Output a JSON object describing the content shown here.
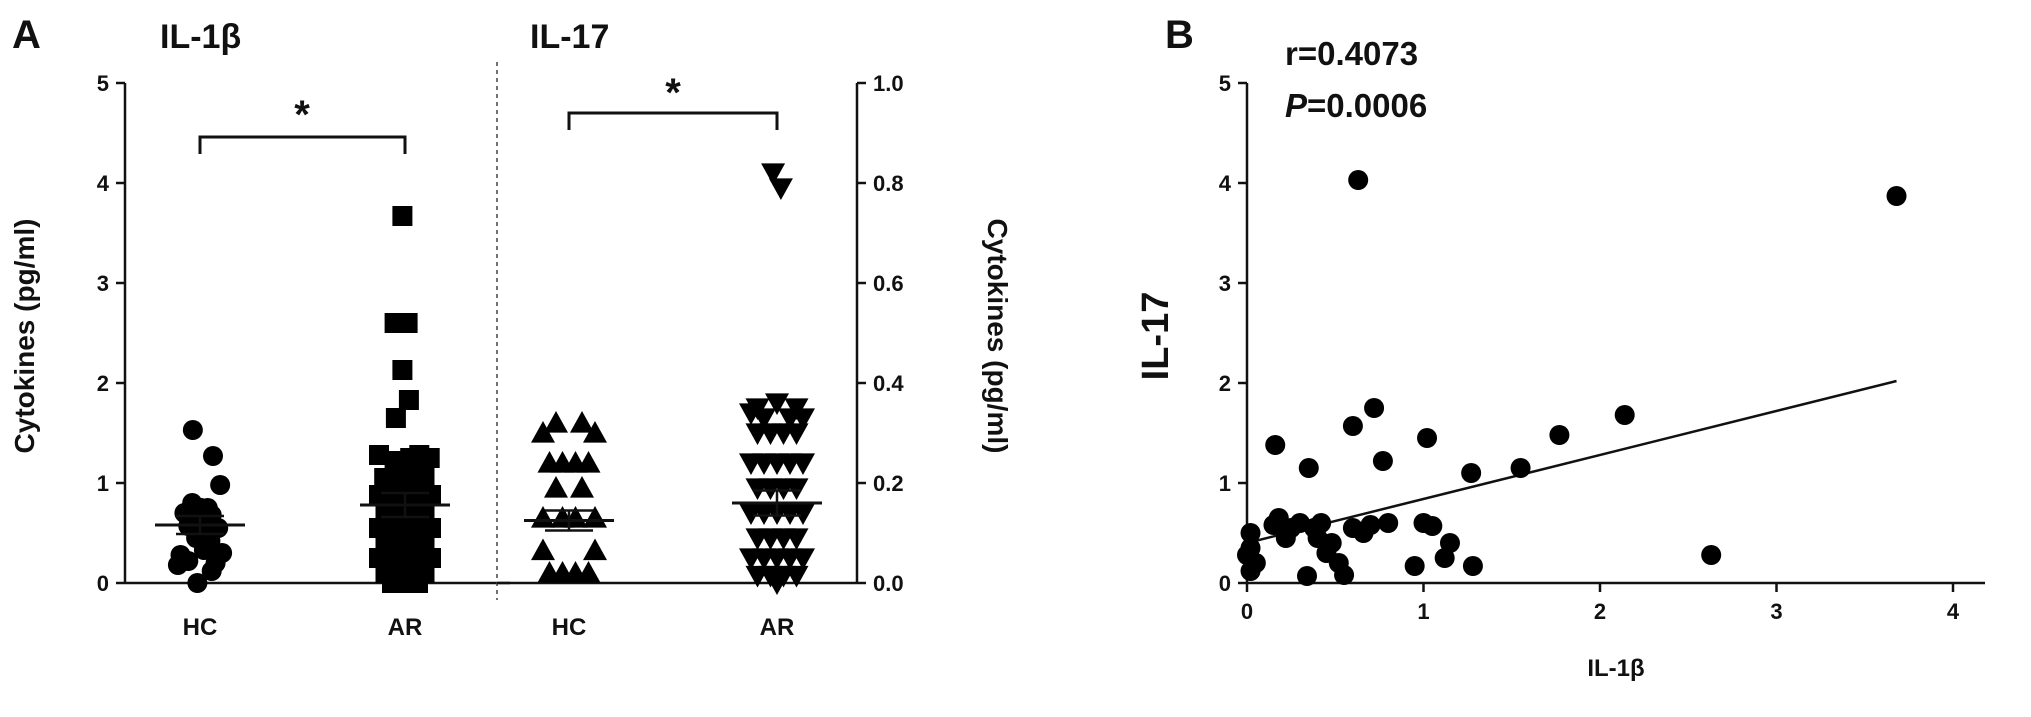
{
  "panels": {
    "A_label": "A",
    "B_label": "B"
  },
  "chart_data": [
    {
      "type": "scatter",
      "subtype": "dot-plot with mean and SEM",
      "title": "IL-1β",
      "ylabel": "Cytokines (pg/ml)",
      "ylim": [
        0,
        5
      ],
      "yticks": [
        "0",
        "1",
        "2",
        "3",
        "4",
        "5"
      ],
      "categories": [
        "HC",
        "AR"
      ],
      "significance": "*",
      "series": [
        {
          "category": "HC",
          "marker": "circle",
          "mean": 0.58,
          "sem": 0.09,
          "points": [
            {
              "x": -0.55,
              "y": 1.53
            },
            {
              "x": 1.0,
              "y": 1.27
            },
            {
              "x": 1.55,
              "y": 0.98
            },
            {
              "x": -0.6,
              "y": 0.8
            },
            {
              "x": 0.1,
              "y": 0.75
            },
            {
              "x": 0.6,
              "y": 0.75
            },
            {
              "x": -1.2,
              "y": 0.7
            },
            {
              "x": -0.2,
              "y": 0.68
            },
            {
              "x": 0.9,
              "y": 0.68
            },
            {
              "x": -0.9,
              "y": 0.57
            },
            {
              "x": 0.3,
              "y": 0.56
            },
            {
              "x": 1.4,
              "y": 0.55
            },
            {
              "x": -0.3,
              "y": 0.45
            },
            {
              "x": 0.8,
              "y": 0.42
            },
            {
              "x": -1.5,
              "y": 0.28
            },
            {
              "x": 1.7,
              "y": 0.3
            },
            {
              "x": 0.3,
              "y": 0.33
            },
            {
              "x": -0.9,
              "y": 0.22
            },
            {
              "x": -1.7,
              "y": 0.18
            },
            {
              "x": 1.2,
              "y": 0.2
            },
            {
              "x": 0.9,
              "y": 0.12
            },
            {
              "x": -0.2,
              "y": 0.0
            }
          ]
        },
        {
          "category": "AR",
          "marker": "square",
          "mean": 0.78,
          "sem": 0.12,
          "points": [
            {
              "x": -0.2,
              "y": 3.67
            },
            {
              "x": -0.8,
              "y": 2.6
            },
            {
              "x": 0.2,
              "y": 2.6
            },
            {
              "x": -0.2,
              "y": 2.13
            },
            {
              "x": 0.3,
              "y": 1.83
            },
            {
              "x": -0.7,
              "y": 1.65
            },
            {
              "x": -2.0,
              "y": 1.28
            },
            {
              "x": 1.1,
              "y": 1.28
            },
            {
              "x": -0.8,
              "y": 1.22
            },
            {
              "x": 0.4,
              "y": 1.25
            },
            {
              "x": 1.9,
              "y": 1.25
            },
            {
              "x": -1.6,
              "y": 1.05
            },
            {
              "x": -0.4,
              "y": 1.07
            },
            {
              "x": 0.6,
              "y": 1.08
            },
            {
              "x": 1.5,
              "y": 1.05
            },
            {
              "x": -2.0,
              "y": 0.88
            },
            {
              "x": -1.0,
              "y": 0.9
            },
            {
              "x": 0.0,
              "y": 0.92
            },
            {
              "x": 1.0,
              "y": 0.9
            },
            {
              "x": 2.0,
              "y": 0.88
            },
            {
              "x": -1.5,
              "y": 0.72
            },
            {
              "x": -0.5,
              "y": 0.75
            },
            {
              "x": 0.5,
              "y": 0.75
            },
            {
              "x": 1.5,
              "y": 0.73
            },
            {
              "x": -2.0,
              "y": 0.55
            },
            {
              "x": -1.0,
              "y": 0.57
            },
            {
              "x": 0.0,
              "y": 0.56
            },
            {
              "x": 1.0,
              "y": 0.57
            },
            {
              "x": 2.0,
              "y": 0.55
            },
            {
              "x": -1.5,
              "y": 0.4
            },
            {
              "x": -0.5,
              "y": 0.42
            },
            {
              "x": 0.5,
              "y": 0.42
            },
            {
              "x": 1.5,
              "y": 0.4
            },
            {
              "x": -2.0,
              "y": 0.25
            },
            {
              "x": -1.0,
              "y": 0.27
            },
            {
              "x": 0.0,
              "y": 0.27
            },
            {
              "x": 1.0,
              "y": 0.27
            },
            {
              "x": 2.0,
              "y": 0.25
            },
            {
              "x": -1.5,
              "y": 0.1
            },
            {
              "x": -0.5,
              "y": 0.12
            },
            {
              "x": 0.5,
              "y": 0.12
            },
            {
              "x": 1.5,
              "y": 0.1
            },
            {
              "x": -1.0,
              "y": 0.0
            },
            {
              "x": 0.0,
              "y": 0.0
            },
            {
              "x": 1.0,
              "y": 0.0
            }
          ]
        }
      ]
    },
    {
      "type": "scatter",
      "subtype": "dot-plot with mean and SEM",
      "title": "IL-17",
      "ylabel": "Cytokines (pg/ml)",
      "ylim": [
        0,
        1.0
      ],
      "yticks": [
        "0.0",
        "0.2",
        "0.4",
        "0.6",
        "0.8",
        "1.0"
      ],
      "categories": [
        "HC",
        "AR"
      ],
      "significance": "*",
      "series": [
        {
          "category": "HC",
          "marker": "triangle-up",
          "mean": 0.125,
          "sem": 0.02,
          "points": [
            {
              "x": -1.0,
              "y": 0.32
            },
            {
              "x": 1.0,
              "y": 0.32
            },
            {
              "x": -2.0,
              "y": 0.3
            },
            {
              "x": 2.0,
              "y": 0.3
            },
            {
              "x": -1.5,
              "y": 0.24
            },
            {
              "x": 1.5,
              "y": 0.24
            },
            {
              "x": -0.5,
              "y": 0.24
            },
            {
              "x": 0.5,
              "y": 0.24
            },
            {
              "x": -1.0,
              "y": 0.19
            },
            {
              "x": 1.0,
              "y": 0.19
            },
            {
              "x": -2.0,
              "y": 0.13
            },
            {
              "x": -0.5,
              "y": 0.13
            },
            {
              "x": 0.5,
              "y": 0.13
            },
            {
              "x": 2.0,
              "y": 0.13
            },
            {
              "x": -2.0,
              "y": 0.065
            },
            {
              "x": 2.0,
              "y": 0.065
            },
            {
              "x": -1.5,
              "y": 0.02
            },
            {
              "x": -0.5,
              "y": 0.02
            },
            {
              "x": 0.5,
              "y": 0.02
            },
            {
              "x": 1.5,
              "y": 0.02
            }
          ]
        },
        {
          "category": "AR",
          "marker": "triangle-down",
          "mean": 0.16,
          "sem": 0.025,
          "points": [
            {
              "x": -0.3,
              "y": 0.82
            },
            {
              "x": 0.3,
              "y": 0.79
            },
            {
              "x": 0.0,
              "y": 0.36
            },
            {
              "x": -1.5,
              "y": 0.35
            },
            {
              "x": 1.5,
              "y": 0.35
            },
            {
              "x": -2.0,
              "y": 0.34
            },
            {
              "x": 1.0,
              "y": 0.33
            },
            {
              "x": -1.0,
              "y": 0.33
            },
            {
              "x": 2.0,
              "y": 0.33
            },
            {
              "x": -1.5,
              "y": 0.3
            },
            {
              "x": -0.5,
              "y": 0.3
            },
            {
              "x": 0.5,
              "y": 0.3
            },
            {
              "x": 1.5,
              "y": 0.3
            },
            {
              "x": -1.0,
              "y": 0.24
            },
            {
              "x": 0.0,
              "y": 0.24
            },
            {
              "x": 1.0,
              "y": 0.24
            },
            {
              "x": -2.0,
              "y": 0.24
            },
            {
              "x": 2.0,
              "y": 0.24
            },
            {
              "x": -1.5,
              "y": 0.19
            },
            {
              "x": -0.5,
              "y": 0.19
            },
            {
              "x": 0.5,
              "y": 0.19
            },
            {
              "x": 1.5,
              "y": 0.19
            },
            {
              "x": -2.0,
              "y": 0.14
            },
            {
              "x": -1.0,
              "y": 0.14
            },
            {
              "x": 0.0,
              "y": 0.14
            },
            {
              "x": 1.0,
              "y": 0.14
            },
            {
              "x": 2.0,
              "y": 0.14
            },
            {
              "x": -1.5,
              "y": 0.09
            },
            {
              "x": -0.5,
              "y": 0.09
            },
            {
              "x": 0.5,
              "y": 0.09
            },
            {
              "x": 1.5,
              "y": 0.09
            },
            {
              "x": -2.0,
              "y": 0.05
            },
            {
              "x": -1.0,
              "y": 0.05
            },
            {
              "x": 0.0,
              "y": 0.05
            },
            {
              "x": 1.0,
              "y": 0.05
            },
            {
              "x": 2.0,
              "y": 0.05
            },
            {
              "x": -1.5,
              "y": 0.015
            },
            {
              "x": -0.5,
              "y": 0.015
            },
            {
              "x": 0.5,
              "y": 0.015
            },
            {
              "x": 1.5,
              "y": 0.015
            },
            {
              "x": 0.0,
              "y": 0.0
            }
          ]
        }
      ]
    },
    {
      "type": "scatter",
      "xlabel": "IL-1β",
      "ylabel": "IL-17",
      "xlim": [
        0,
        4
      ],
      "ylim": [
        0,
        5
      ],
      "xticks": [
        "0",
        "1",
        "2",
        "3",
        "4"
      ],
      "yticks": [
        "0",
        "1",
        "2",
        "3",
        "4",
        "5"
      ],
      "stats": {
        "r": "r=0.4073",
        "p_label": "P",
        "p_value": "=0.0006"
      },
      "fit_line": {
        "x": [
          0.0,
          3.68
        ],
        "y": [
          0.4,
          2.02
        ]
      },
      "points": [
        {
          "x": 0.63,
          "y": 4.03
        },
        {
          "x": 3.68,
          "y": 3.87
        },
        {
          "x": 0.72,
          "y": 1.75
        },
        {
          "x": 2.14,
          "y": 1.68
        },
        {
          "x": 0.6,
          "y": 1.57
        },
        {
          "x": 1.77,
          "y": 1.48
        },
        {
          "x": 1.02,
          "y": 1.45
        },
        {
          "x": 0.16,
          "y": 1.38
        },
        {
          "x": 0.77,
          "y": 1.22
        },
        {
          "x": 0.35,
          "y": 1.15
        },
        {
          "x": 1.55,
          "y": 1.15
        },
        {
          "x": 1.27,
          "y": 1.1
        },
        {
          "x": 0.18,
          "y": 0.65
        },
        {
          "x": 0.3,
          "y": 0.6
        },
        {
          "x": 0.42,
          "y": 0.6
        },
        {
          "x": 0.15,
          "y": 0.58
        },
        {
          "x": 0.25,
          "y": 0.55
        },
        {
          "x": 0.38,
          "y": 0.55
        },
        {
          "x": 0.6,
          "y": 0.55
        },
        {
          "x": 0.7,
          "y": 0.58
        },
        {
          "x": 0.8,
          "y": 0.6
        },
        {
          "x": 1.0,
          "y": 0.6
        },
        {
          "x": 1.05,
          "y": 0.57
        },
        {
          "x": 0.66,
          "y": 0.5
        },
        {
          "x": 0.02,
          "y": 0.5
        },
        {
          "x": 0.22,
          "y": 0.45
        },
        {
          "x": 0.4,
          "y": 0.45
        },
        {
          "x": 0.48,
          "y": 0.4
        },
        {
          "x": 1.15,
          "y": 0.4
        },
        {
          "x": 0.02,
          "y": 0.35
        },
        {
          "x": 0.45,
          "y": 0.3
        },
        {
          "x": 0.0,
          "y": 0.28
        },
        {
          "x": 2.63,
          "y": 0.28
        },
        {
          "x": 1.12,
          "y": 0.25
        },
        {
          "x": 0.05,
          "y": 0.2
        },
        {
          "x": 0.52,
          "y": 0.2
        },
        {
          "x": 0.95,
          "y": 0.17
        },
        {
          "x": 1.28,
          "y": 0.17
        },
        {
          "x": 0.02,
          "y": 0.12
        },
        {
          "x": 0.34,
          "y": 0.07
        },
        {
          "x": 0.55,
          "y": 0.08
        }
      ]
    }
  ]
}
